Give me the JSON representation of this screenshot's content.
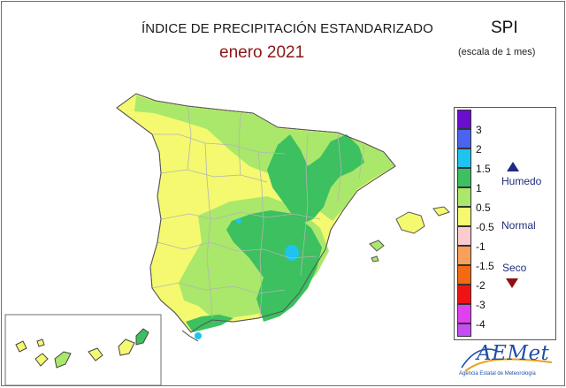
{
  "header": {
    "title": "ÍNDICE DE PRECIPITACIÓN ESTANDARIZADO",
    "subtitle": "enero 2021",
    "index_code": "SPI",
    "scale_note": "(escala de 1 mes)"
  },
  "legend": {
    "categories": [
      {
        "tick": "3",
        "color": "#6a0dcf"
      },
      {
        "tick": "2",
        "color": "#4a64f0"
      },
      {
        "tick": "1.5",
        "color": "#1ec3ef"
      },
      {
        "tick": "1",
        "color": "#3cc060"
      },
      {
        "tick": "0.5",
        "color": "#a9e86a"
      },
      {
        "tick": "-0.5",
        "color": "#f4f970"
      },
      {
        "tick": "-1",
        "color": "#f9cdd0"
      },
      {
        "tick": "-1.5",
        "color": "#f9a05a"
      },
      {
        "tick": "-2",
        "color": "#f26a14"
      },
      {
        "tick": "-3",
        "color": "#ef1414"
      },
      {
        "tick": "-4",
        "color": "#e040f0"
      },
      {
        "tick": "",
        "color": "#c44ff0"
      }
    ],
    "wet_label": "Humedo",
    "normal_label": "Normal",
    "dry_label": "Seco",
    "wet_icon": "triangle-up-icon",
    "dry_icon": "triangle-down-icon"
  },
  "logo": {
    "name": "AEMet",
    "agency": "Agencia Estatal de Meteorología"
  }
}
